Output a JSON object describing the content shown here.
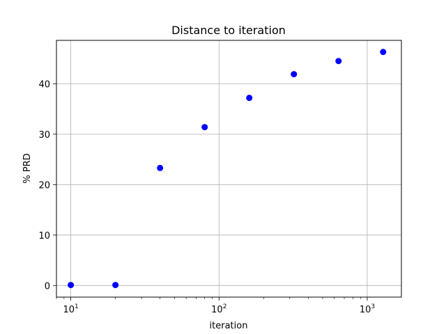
{
  "chart_data": {
    "type": "scatter",
    "title": "Distance to iteration",
    "xlabel": "iteration",
    "ylabel": "% PRD",
    "xscale": "log",
    "xlim": [
      8,
      1700
    ],
    "ylim": [
      -2.3,
      48.6
    ],
    "x_ticks": [
      10,
      100,
      1000
    ],
    "x_tick_labels": [
      {
        "base": "10",
        "exp": "1"
      },
      {
        "base": "10",
        "exp": "2"
      },
      {
        "base": "10",
        "exp": "3"
      }
    ],
    "y_ticks": [
      0,
      10,
      20,
      30,
      40
    ],
    "y_tick_labels": [
      "0",
      "10",
      "20",
      "30",
      "40"
    ],
    "grid": true,
    "marker_color": "#0000ff",
    "points": [
      {
        "x": 10,
        "y": 0.1
      },
      {
        "x": 20,
        "y": 0.1
      },
      {
        "x": 40,
        "y": 23.3
      },
      {
        "x": 80,
        "y": 31.4
      },
      {
        "x": 160,
        "y": 37.2
      },
      {
        "x": 320,
        "y": 41.9
      },
      {
        "x": 640,
        "y": 44.5
      },
      {
        "x": 1280,
        "y": 46.3
      }
    ]
  }
}
